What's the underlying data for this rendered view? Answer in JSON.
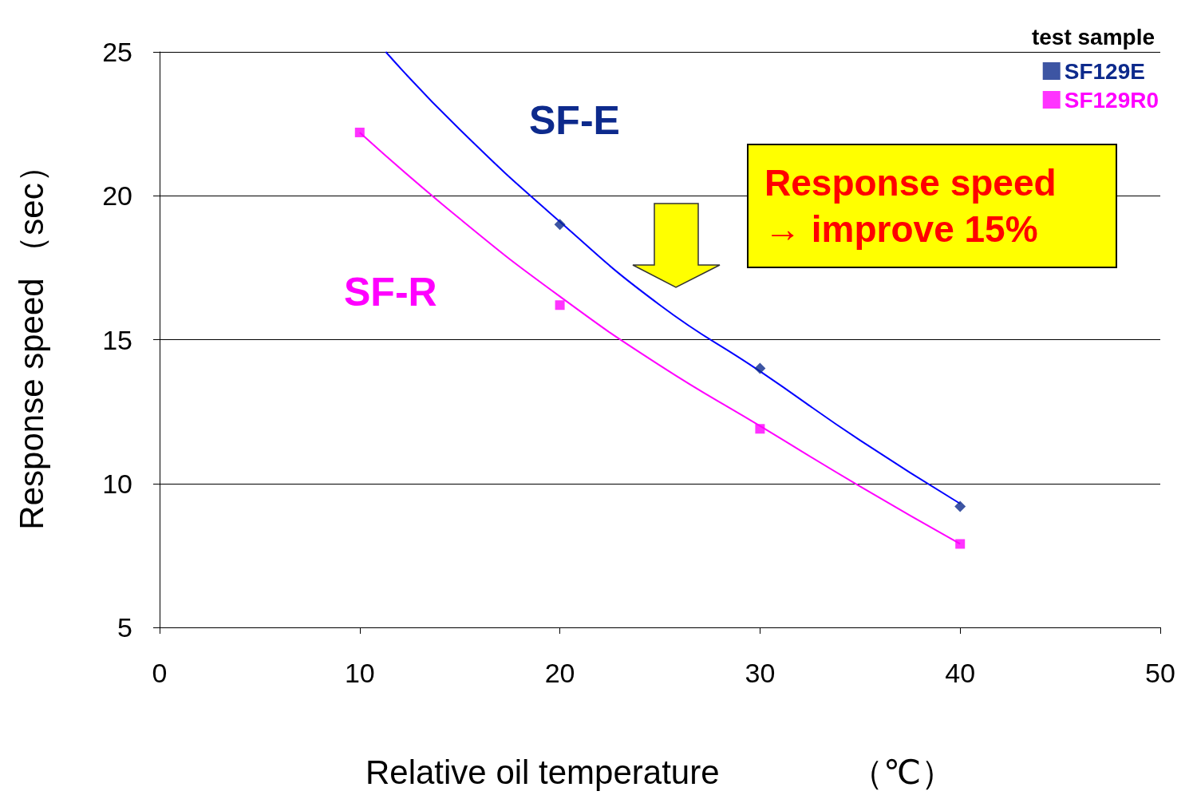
{
  "chart_data": {
    "type": "scatter",
    "xlabel": "Relative oil temperature              （℃）",
    "ylabel": "Response speed （sec）",
    "legend_title": "test sample",
    "legend": "top right",
    "grid": "y",
    "xlim": [
      0,
      50
    ],
    "xticks": [
      0,
      10,
      20,
      30,
      40,
      50
    ],
    "ylim": [
      5,
      25
    ],
    "yticks": [
      5,
      10,
      15,
      20,
      25
    ],
    "series": [
      {
        "name": "SF129E",
        "color": "#0d2a8c",
        "marker": "diamond",
        "x": [
          20,
          30,
          40
        ],
        "values": [
          19.0,
          14.0,
          9.2
        ]
      },
      {
        "name": "SF129R0",
        "color": "#ff00ff",
        "marker": "square",
        "x": [
          10,
          20,
          30,
          40
        ],
        "values": [
          22.2,
          16.2,
          11.9,
          7.9
        ]
      },
      {
        "type": "line",
        "color": "#0000ff",
        "marker": "none",
        "x": [
          11.3,
          15,
          20,
          25,
          30,
          35,
          40
        ],
        "values": [
          25,
          22.3,
          19.1,
          16.2,
          13.9,
          11.5,
          9.3
        ]
      },
      {
        "type": "line",
        "color": "#ff00ff",
        "marker": "none",
        "x": [
          10,
          15,
          20,
          25,
          30,
          35,
          40
        ],
        "values": [
          22.2,
          19.2,
          16.5,
          14.1,
          12.0,
          9.9,
          7.9
        ]
      }
    ],
    "annotations": [
      "SF-E",
      "SF-R",
      "Response speed\n→ improve 15%"
    ]
  }
}
